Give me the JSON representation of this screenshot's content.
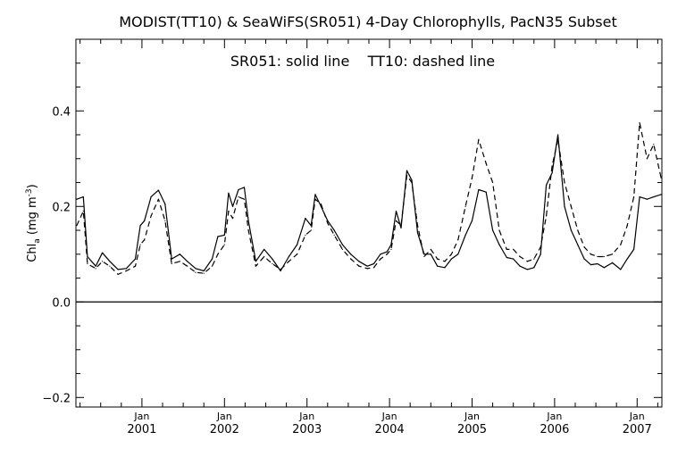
{
  "chart_data": {
    "type": "line",
    "title": "MODIST(TT10) & SeaWiFS(SR051) 4-Day Chlorophylls, PacN35 Subset",
    "annotation": "SR051: solid line    TT10: dashed line",
    "ylabel": {
      "main": "Chl",
      "sub": "a",
      "unit_open": " (mg m",
      "unit_sup": "-3",
      "unit_close": ")"
    },
    "ylim": [
      -0.22,
      0.55
    ],
    "xlim": [
      2000.2,
      2007.3
    ],
    "yticks": [
      {
        "value": -0.2,
        "label": "−0.2"
      },
      {
        "value": 0.0,
        "label": "0.0"
      },
      {
        "value": 0.2,
        "label": "0.2"
      },
      {
        "value": 0.4,
        "label": "0.4"
      }
    ],
    "xticks": [
      {
        "value": 2001.0,
        "month": "Jan",
        "year": "2001"
      },
      {
        "value": 2002.0,
        "month": "Jan",
        "year": "2002"
      },
      {
        "value": 2003.0,
        "month": "Jan",
        "year": "2003"
      },
      {
        "value": 2004.0,
        "month": "Jan",
        "year": "2004"
      },
      {
        "value": 2005.0,
        "month": "Jan",
        "year": "2005"
      },
      {
        "value": 2006.0,
        "month": "Jan",
        "year": "2006"
      },
      {
        "value": 2007.0,
        "month": "Jan",
        "year": "2007"
      }
    ],
    "zero_line": 0.0,
    "series": [
      {
        "name": "SR051",
        "style": "solid",
        "x": [
          2000.21,
          2000.29,
          2000.34,
          2000.44,
          2000.52,
          2000.61,
          2000.71,
          2000.81,
          2000.92,
          2000.98,
          2001.03,
          2001.11,
          2001.2,
          2001.28,
          2001.36,
          2001.46,
          2001.55,
          2001.65,
          2001.75,
          2001.85,
          2001.92,
          2002.0,
          2002.05,
          2002.1,
          2002.17,
          2002.24,
          2002.29,
          2002.38,
          2002.48,
          2002.58,
          2002.68,
          2002.78,
          2002.88,
          2002.98,
          2003.05,
          2003.1,
          2003.17,
          2003.25,
          2003.33,
          2003.43,
          2003.53,
          2003.63,
          2003.73,
          2003.81,
          2003.89,
          2003.97,
          2004.02,
          2004.08,
          2004.14,
          2004.21,
          2004.27,
          2004.34,
          2004.42,
          2004.5,
          2004.58,
          2004.67,
          2004.75,
          2004.83,
          2004.92,
          2005.0,
          2005.08,
          2005.17,
          2005.25,
          2005.33,
          2005.42,
          2005.5,
          2005.58,
          2005.67,
          2005.75,
          2005.83,
          2005.9,
          2005.97,
          2006.04,
          2006.12,
          2006.2,
          2006.28,
          2006.36,
          2006.44,
          2006.52,
          2006.6,
          2006.7,
          2006.8,
          2006.88,
          2006.96,
          2007.03,
          2007.12,
          2007.2,
          2007.29
        ],
        "y": [
          0.215,
          0.22,
          0.095,
          0.075,
          0.103,
          0.085,
          0.068,
          0.07,
          0.09,
          0.16,
          0.17,
          0.22,
          0.234,
          0.205,
          0.09,
          0.1,
          0.085,
          0.07,
          0.065,
          0.09,
          0.137,
          0.14,
          0.228,
          0.2,
          0.235,
          0.24,
          0.17,
          0.085,
          0.11,
          0.09,
          0.065,
          0.095,
          0.12,
          0.175,
          0.16,
          0.225,
          0.2,
          0.17,
          0.15,
          0.12,
          0.1,
          0.085,
          0.075,
          0.08,
          0.1,
          0.105,
          0.12,
          0.19,
          0.155,
          0.275,
          0.255,
          0.145,
          0.1,
          0.1,
          0.075,
          0.072,
          0.09,
          0.1,
          0.14,
          0.17,
          0.235,
          0.23,
          0.15,
          0.12,
          0.093,
          0.09,
          0.075,
          0.068,
          0.072,
          0.1,
          0.245,
          0.27,
          0.35,
          0.2,
          0.15,
          0.12,
          0.09,
          0.078,
          0.08,
          0.072,
          0.082,
          0.068,
          0.09,
          0.11,
          0.22,
          0.215,
          0.22,
          0.225
        ]
      },
      {
        "name": "TT10",
        "style": "dashed",
        "x": [
          2000.21,
          2000.29,
          2000.34,
          2000.44,
          2000.52,
          2000.61,
          2000.71,
          2000.81,
          2000.92,
          2000.98,
          2001.03,
          2001.11,
          2001.2,
          2001.28,
          2001.36,
          2001.46,
          2001.55,
          2001.65,
          2001.75,
          2001.85,
          2001.92,
          2002.0,
          2002.05,
          2002.1,
          2002.17,
          2002.24,
          2002.29,
          2002.38,
          2002.48,
          2002.58,
          2002.68,
          2002.78,
          2002.88,
          2002.98,
          2003.05,
          2003.1,
          2003.17,
          2003.25,
          2003.33,
          2003.43,
          2003.53,
          2003.63,
          2003.73,
          2003.81,
          2003.89,
          2003.97,
          2004.02,
          2004.08,
          2004.14,
          2004.21,
          2004.27,
          2004.34,
          2004.42,
          2004.5,
          2004.58,
          2004.67,
          2004.75,
          2004.83,
          2004.92,
          2005.0,
          2005.08,
          2005.17,
          2005.25,
          2005.33,
          2005.42,
          2005.5,
          2005.58,
          2005.67,
          2005.75,
          2005.83,
          2005.9,
          2005.97,
          2006.04,
          2006.12,
          2006.2,
          2006.28,
          2006.36,
          2006.44,
          2006.52,
          2006.6,
          2006.7,
          2006.8,
          2006.88,
          2006.96,
          2007.03,
          2007.12,
          2007.2,
          2007.29
        ],
        "y": [
          0.16,
          0.19,
          0.08,
          0.07,
          0.085,
          0.075,
          0.058,
          0.065,
          0.075,
          0.12,
          0.13,
          0.18,
          0.215,
          0.17,
          0.08,
          0.085,
          0.075,
          0.062,
          0.06,
          0.075,
          0.1,
          0.12,
          0.19,
          0.175,
          0.22,
          0.215,
          0.15,
          0.075,
          0.095,
          0.08,
          0.068,
          0.085,
          0.1,
          0.14,
          0.15,
          0.215,
          0.205,
          0.165,
          0.14,
          0.11,
          0.09,
          0.075,
          0.07,
          0.072,
          0.09,
          0.1,
          0.11,
          0.17,
          0.16,
          0.265,
          0.25,
          0.16,
          0.095,
          0.11,
          0.09,
          0.085,
          0.1,
          0.13,
          0.2,
          0.26,
          0.34,
          0.29,
          0.25,
          0.15,
          0.11,
          0.11,
          0.095,
          0.085,
          0.09,
          0.115,
          0.18,
          0.285,
          0.34,
          0.25,
          0.2,
          0.15,
          0.115,
          0.1,
          0.095,
          0.095,
          0.1,
          0.12,
          0.16,
          0.22,
          0.375,
          0.3,
          0.33,
          0.26
        ]
      }
    ]
  }
}
